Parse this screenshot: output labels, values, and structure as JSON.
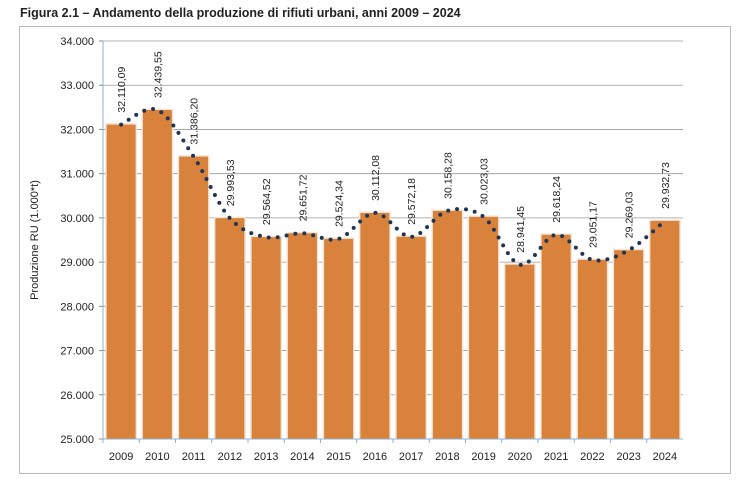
{
  "title": "Figura 2.1 – Andamento della produzione di rifiuti urbani, anni 2009 – 2024",
  "chart_data": {
    "type": "bar",
    "title": "Figura 2.1 – Andamento della produzione di rifiuti urbani, anni 2009 – 2024",
    "xlabel": "",
    "ylabel": "Produzione RU (1.000*t)",
    "ylim": [
      25000,
      34000
    ],
    "yticks": [
      "25.000",
      "26.000",
      "27.000",
      "28.000",
      "29.000",
      "30.000",
      "31.000",
      "32.000",
      "33.000",
      "34.000"
    ],
    "grid": true,
    "categories": [
      "2009",
      "2010",
      "2011",
      "2012",
      "2013",
      "2014",
      "2015",
      "2016",
      "2017",
      "2018",
      "2019",
      "2020",
      "2021",
      "2022",
      "2023",
      "2024"
    ],
    "values": [
      32110.09,
      32439.55,
      31386.2,
      29993.53,
      29564.52,
      29651.72,
      29524.34,
      30112.08,
      29572.18,
      30158.28,
      30023.03,
      28941.45,
      29618.24,
      29051.17,
      29269.03,
      29932.73
    ],
    "labels": [
      "32.110,09",
      "32.439,55",
      "31.386,20",
      "29.993,53",
      "29.564,52",
      "29.651,72",
      "29.524,34",
      "30.112,08",
      "29.572,18",
      "30.158,28",
      "30.023,03",
      "28.941,45",
      "29.618,24",
      "29.051,17",
      "29.269,03",
      "29.932,73"
    ],
    "bar_color": "#d9823b",
    "trend_color": "#1f3552",
    "trend_style": "dotted smoothed line"
  }
}
